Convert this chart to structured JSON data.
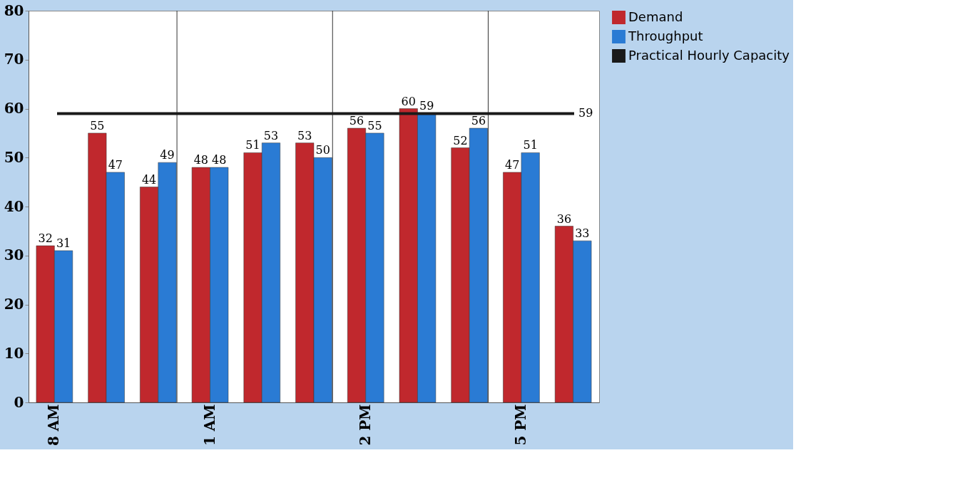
{
  "chart_data": {
    "type": "bar",
    "categories": [
      "8 AM",
      null,
      null,
      "1 AM",
      null,
      null,
      "2 PM",
      null,
      null,
      "5 PM",
      null
    ],
    "series": [
      {
        "name": "Demand",
        "color": "#c0282d",
        "values": [
          32,
          55,
          44,
          48,
          51,
          53,
          56,
          60,
          52,
          47,
          36
        ]
      },
      {
        "name": "Throughput",
        "color": "#2a7bd4",
        "values": [
          31,
          47,
          49,
          48,
          53,
          50,
          55,
          59,
          56,
          51,
          33
        ]
      }
    ],
    "ylim": [
      0,
      80
    ],
    "yticks": [
      0,
      10,
      20,
      30,
      40,
      50,
      60,
      70,
      80
    ],
    "data_labels": true,
    "grid": "x",
    "legend": "right",
    "annotations": [
      "59"
    ],
    "ref_lines": [
      {
        "axis": "y",
        "value": 59,
        "label": "Practical Hourly Capacity",
        "color": "#1a1a1a"
      }
    ]
  }
}
